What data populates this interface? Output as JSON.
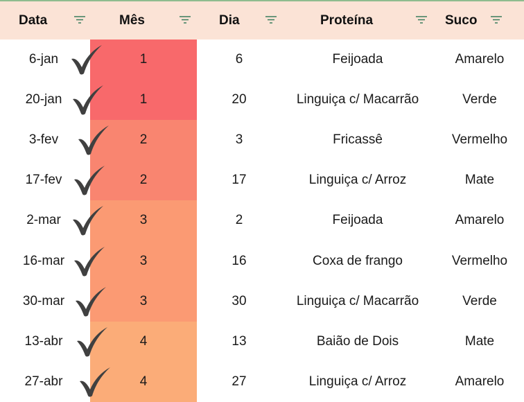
{
  "headers": {
    "data": "Data",
    "mes": "Mês",
    "dia": "Dia",
    "proteina": "Proteína",
    "suco": "Suco"
  },
  "icons": {
    "filter": "filter-icon",
    "check": "checkmark-icon"
  },
  "colors": {
    "header_bg": "#fbe3d6",
    "month_1": "#f8696b",
    "month_2": "#f98570",
    "month_3": "#fb9a73",
    "month_4": "#fbac78"
  },
  "rows": [
    {
      "date": "6-jan",
      "mes": "1",
      "dia": "6",
      "proteina": "Feijoada",
      "suco": "Amarelo"
    },
    {
      "date": "20-jan",
      "mes": "1",
      "dia": "20",
      "proteina": "Linguiça c/ Macarrão",
      "suco": "Verde"
    },
    {
      "date": "3-fev",
      "mes": "2",
      "dia": "3",
      "proteina": "Fricassê",
      "suco": "Vermelho"
    },
    {
      "date": "17-fev",
      "mes": "2",
      "dia": "17",
      "proteina": "Linguiça c/ Arroz",
      "suco": "Mate"
    },
    {
      "date": "2-mar",
      "mes": "3",
      "dia": "2",
      "proteina": "Feijoada",
      "suco": "Amarelo"
    },
    {
      "date": "16-mar",
      "mes": "3",
      "dia": "16",
      "proteina": "Coxa de frango",
      "suco": "Vermelho"
    },
    {
      "date": "30-mar",
      "mes": "3",
      "dia": "30",
      "proteina": "Linguiça c/ Macarrão",
      "suco": "Verde"
    },
    {
      "date": "13-abr",
      "mes": "4",
      "dia": "13",
      "proteina": "Baião de Dois",
      "suco": "Mate"
    },
    {
      "date": "27-abr",
      "mes": "4",
      "dia": "27",
      "proteina": "Linguiça c/ Arroz",
      "suco": "Amarelo"
    }
  ]
}
